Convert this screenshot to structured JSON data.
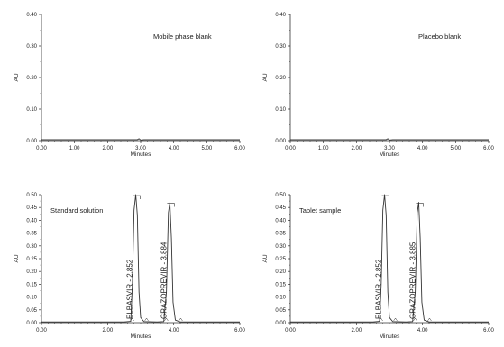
{
  "chart_data": [
    {
      "type": "line",
      "title": "Mobile phase blank",
      "xlabel": "Minutes",
      "ylabel": "AU",
      "xlim": [
        0,
        6
      ],
      "ylim": [
        0,
        0.4
      ],
      "xticks": [
        "0.00",
        "1.00",
        "2.00",
        "3.00",
        "4.00",
        "5.00",
        "6.00"
      ],
      "yticks": [
        "0.00",
        "0.10",
        "0.20",
        "0.30",
        "0.40"
      ],
      "series": [
        {
          "x": [
            0,
            1.0,
            2.0,
            2.9,
            2.95,
            3.0,
            3.1,
            4.0,
            5.0,
            6.0
          ],
          "y": [
            0.003,
            0.003,
            0.003,
            0.003,
            0.006,
            0.002,
            0.003,
            0.003,
            0.003,
            0.003
          ]
        }
      ],
      "peaks": []
    },
    {
      "type": "line",
      "title": "Placebo blank",
      "xlabel": "Minutes",
      "ylabel": "AU",
      "xlim": [
        0,
        6
      ],
      "ylim": [
        0,
        0.4
      ],
      "xticks": [
        "0.00",
        "1.00",
        "2.00",
        "3.00",
        "4.00",
        "5.00",
        "6.00"
      ],
      "yticks": [
        "0.00",
        "0.10",
        "0.20",
        "0.30",
        "0.40"
      ],
      "series": [
        {
          "x": [
            0,
            1.0,
            2.0,
            2.9,
            2.95,
            3.0,
            3.1,
            4.0,
            5.0,
            6.0
          ],
          "y": [
            0.003,
            0.003,
            0.003,
            0.003,
            0.006,
            0.002,
            0.003,
            0.003,
            0.003,
            0.003
          ]
        }
      ],
      "peaks": []
    },
    {
      "type": "line",
      "title": "Standard solution",
      "xlabel": "Minutes",
      "ylabel": "AU",
      "xlim": [
        0,
        6
      ],
      "ylim": [
        0,
        0.5
      ],
      "xticks": [
        "0.00",
        "2.00",
        "4.00",
        "6.00"
      ],
      "yticks": [
        "0.00",
        "0.05",
        "0.10",
        "0.15",
        "0.20",
        "0.25",
        "0.30",
        "0.35",
        "0.40",
        "0.45",
        "0.50"
      ],
      "series": [
        {
          "x": [
            0,
            2.5,
            2.7,
            2.75,
            2.8,
            2.852,
            2.9,
            2.95,
            3.0,
            3.1,
            3.5,
            3.7,
            3.78,
            3.84,
            3.884,
            3.93,
            3.98,
            4.05,
            4.2,
            6.0
          ],
          "y": [
            0.003,
            0.003,
            0.005,
            0.15,
            0.44,
            0.5,
            0.42,
            0.12,
            0.02,
            0.004,
            0.003,
            0.004,
            0.12,
            0.43,
            0.47,
            0.33,
            0.08,
            0.01,
            0.003,
            0.003
          ]
        }
      ],
      "peaks": [
        {
          "name": "ELBASVIR",
          "label": "ELBASVIR - 2.852",
          "x": 2.852,
          "y": 0.5
        },
        {
          "name": "GRAZOPREVIR",
          "label": "GRAZOPREVIR - 3.884",
          "x": 3.884,
          "y": 0.47
        }
      ]
    },
    {
      "type": "line",
      "title": "Tablet sample",
      "xlabel": "Minutes",
      "ylabel": "AU",
      "xlim": [
        0,
        6
      ],
      "ylim": [
        0,
        0.5
      ],
      "xticks": [
        "0.00",
        "2.00",
        "4.00",
        "6.00"
      ],
      "yticks": [
        "0.00",
        "0.05",
        "0.10",
        "0.15",
        "0.20",
        "0.25",
        "0.30",
        "0.35",
        "0.40",
        "0.45",
        "0.50"
      ],
      "series": [
        {
          "x": [
            0,
            2.5,
            2.7,
            2.75,
            2.8,
            2.852,
            2.9,
            2.95,
            3.0,
            3.1,
            3.5,
            3.7,
            3.78,
            3.84,
            3.885,
            3.93,
            3.98,
            4.05,
            4.2,
            6.0
          ],
          "y": [
            0.003,
            0.003,
            0.005,
            0.15,
            0.44,
            0.5,
            0.42,
            0.12,
            0.02,
            0.004,
            0.003,
            0.004,
            0.12,
            0.43,
            0.47,
            0.33,
            0.08,
            0.01,
            0.003,
            0.003
          ]
        }
      ],
      "peaks": [
        {
          "name": "ELBASVIR",
          "label": "ELBASVIR - 2.852",
          "x": 2.852,
          "y": 0.5
        },
        {
          "name": "GRAZOPREVIR",
          "label": "GRAZOPREVIR - 3.885",
          "x": 3.885,
          "y": 0.47
        }
      ]
    }
  ]
}
